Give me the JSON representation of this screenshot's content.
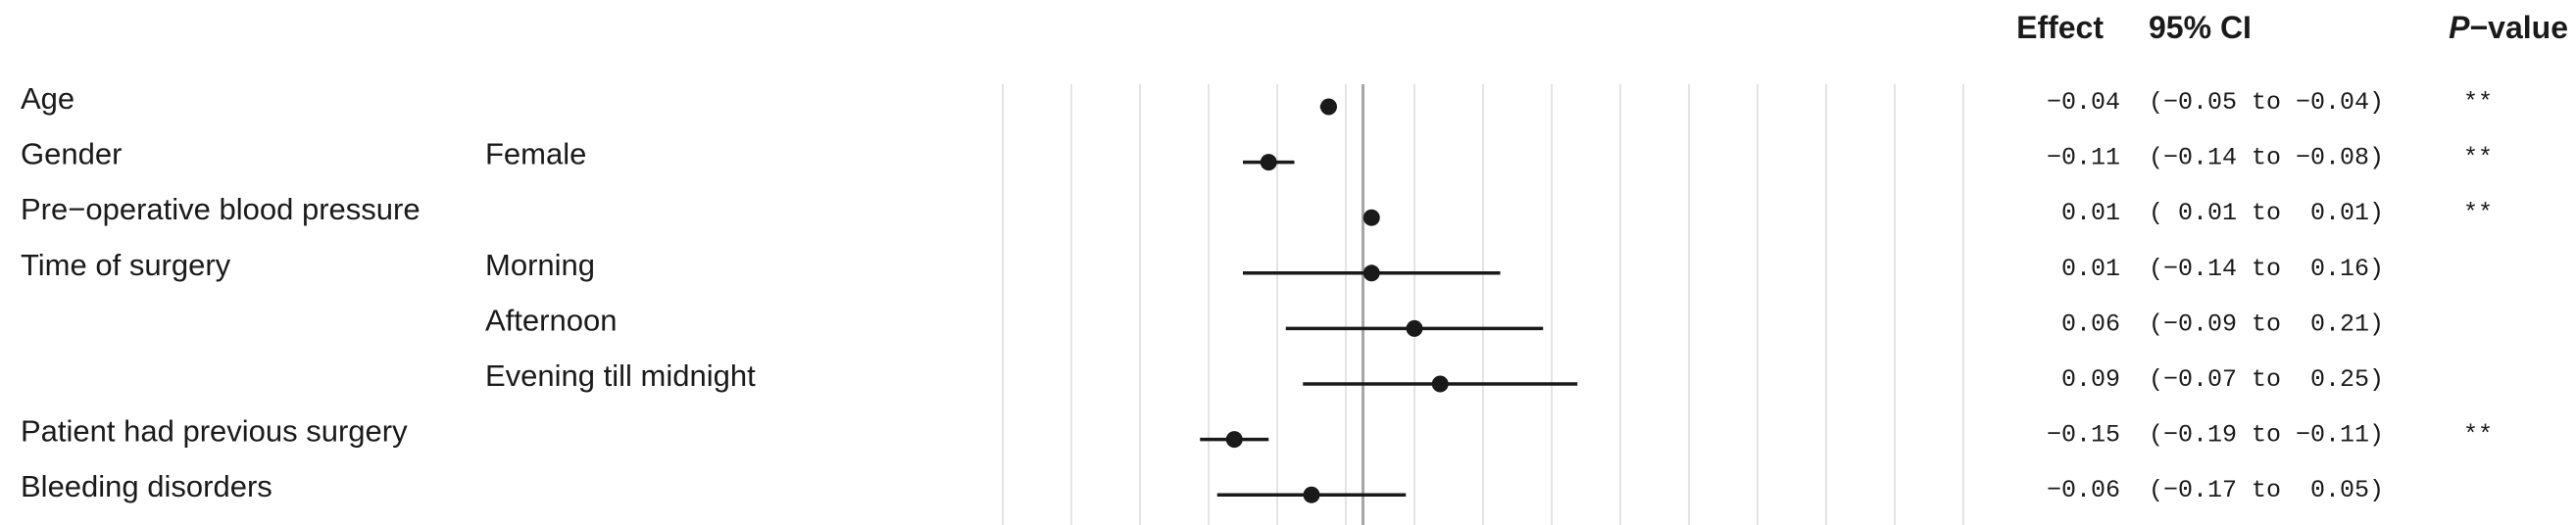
{
  "chart_data": {
    "type": "forest",
    "headers": {
      "effect": "Effect",
      "ci": "95% CI",
      "p_prefix": "P",
      "p_suffix": "−value"
    },
    "xlim": [
      -0.42,
      0.7
    ],
    "reference_value": 0,
    "grid": true,
    "rows": [
      {
        "variable": "Age",
        "level": "",
        "effect": -0.04,
        "ci_low": -0.05,
        "ci_high": -0.04,
        "effect_text": "−0.04",
        "ci_text": "(−0.05 to −0.04)",
        "p_text": "**"
      },
      {
        "variable": "Gender",
        "level": "Female",
        "effect": -0.11,
        "ci_low": -0.14,
        "ci_high": -0.08,
        "effect_text": "−0.11",
        "ci_text": "(−0.14 to −0.08)",
        "p_text": "**"
      },
      {
        "variable": "Pre−operative blood pressure",
        "level": "",
        "effect": 0.01,
        "ci_low": 0.01,
        "ci_high": 0.01,
        "effect_text": "0.01",
        "ci_text": "( 0.01 to  0.01)",
        "p_text": "**"
      },
      {
        "variable": "Time of surgery",
        "level": "Morning",
        "effect": 0.01,
        "ci_low": -0.14,
        "ci_high": 0.16,
        "effect_text": "0.01",
        "ci_text": "(−0.14 to  0.16)",
        "p_text": ""
      },
      {
        "variable": "",
        "level": "Afternoon",
        "effect": 0.06,
        "ci_low": -0.09,
        "ci_high": 0.21,
        "effect_text": "0.06",
        "ci_text": "(−0.09 to  0.21)",
        "p_text": ""
      },
      {
        "variable": "",
        "level": "Evening till midnight",
        "effect": 0.09,
        "ci_low": -0.07,
        "ci_high": 0.25,
        "effect_text": "0.09",
        "ci_text": "(−0.07 to  0.25)",
        "p_text": ""
      },
      {
        "variable": "Patient had previous surgery",
        "level": "",
        "effect": -0.15,
        "ci_low": -0.19,
        "ci_high": -0.11,
        "effect_text": "−0.15",
        "ci_text": "(−0.19 to −0.11)",
        "p_text": "**"
      },
      {
        "variable": "Bleeding disorders",
        "level": "",
        "effect": -0.06,
        "ci_low": -0.17,
        "ci_high": 0.05,
        "effect_text": "−0.06",
        "ci_text": "(−0.17 to  0.05)",
        "p_text": ""
      }
    ],
    "colors": {
      "point": "#1a1a1a",
      "grid": "#e4e4e4",
      "reference": "#a6a6a6",
      "text": "#1a1a1a"
    }
  }
}
